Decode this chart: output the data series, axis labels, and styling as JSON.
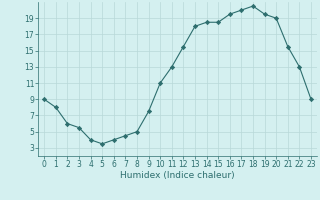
{
  "x": [
    0,
    1,
    2,
    3,
    4,
    5,
    6,
    7,
    8,
    9,
    10,
    11,
    12,
    13,
    14,
    15,
    16,
    17,
    18,
    19,
    20,
    21,
    22,
    23
  ],
  "y": [
    9,
    8,
    6,
    5.5,
    4,
    3.5,
    4,
    4.5,
    5,
    7.5,
    11,
    13,
    15.5,
    18,
    18.5,
    18.5,
    19.5,
    20,
    20.5,
    19.5,
    19,
    15.5,
    13,
    9
  ],
  "line_color": "#2d6e6e",
  "marker": "D",
  "marker_size": 2.2,
  "bg_color": "#d4f0f0",
  "grid_color": "#b8d8d8",
  "xlabel": "Humidex (Indice chaleur)",
  "xlim": [
    -0.5,
    23.5
  ],
  "ylim": [
    2,
    21
  ],
  "yticks": [
    3,
    5,
    7,
    9,
    11,
    13,
    15,
    17,
    19
  ],
  "xticks": [
    0,
    1,
    2,
    3,
    4,
    5,
    6,
    7,
    8,
    9,
    10,
    11,
    12,
    13,
    14,
    15,
    16,
    17,
    18,
    19,
    20,
    21,
    22,
    23
  ],
  "tick_fontsize": 5.5,
  "xlabel_fontsize": 6.5
}
